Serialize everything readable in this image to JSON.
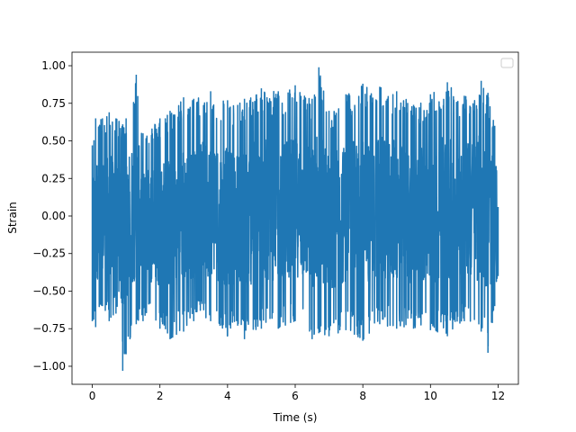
{
  "chart_data": {
    "type": "line",
    "title": "",
    "xlabel": "Time (s)",
    "ylabel": "Strain",
    "xlim": [
      -0.6,
      12.6
    ],
    "ylim": [
      -1.12,
      1.09
    ],
    "x_ticks": [
      0,
      2,
      4,
      6,
      8,
      10,
      12
    ],
    "x_tick_labels": [
      "0",
      "2",
      "4",
      "6",
      "8",
      "10",
      "12"
    ],
    "y_ticks": [
      -1.0,
      -0.75,
      -0.5,
      -0.25,
      0.0,
      0.25,
      0.5,
      0.75,
      1.0
    ],
    "y_tick_labels": [
      "−1.00",
      "−0.75",
      "−0.50",
      "−0.25",
      "0.00",
      "0.25",
      "0.50",
      "0.75",
      "1.00"
    ],
    "grid": false,
    "legend": {
      "position": "top-right",
      "entries": []
    },
    "series": [
      {
        "color": "#1f77b4",
        "x_start": 0,
        "x_end": 12,
        "samples": 2400,
        "envelope": [
          {
            "x": 0.0,
            "min": -0.7,
            "max": 0.47
          },
          {
            "x": 0.1,
            "min": -0.74,
            "max": 0.65
          },
          {
            "x": 0.3,
            "min": -0.6,
            "max": 0.65
          },
          {
            "x": 0.5,
            "min": -0.7,
            "max": 0.69
          },
          {
            "x": 0.7,
            "min": -0.65,
            "max": 0.65
          },
          {
            "x": 0.9,
            "min": -1.03,
            "max": 0.61
          },
          {
            "x": 1.0,
            "min": -0.92,
            "max": 0.65
          },
          {
            "x": 1.3,
            "min": -0.72,
            "max": 0.94
          },
          {
            "x": 1.5,
            "min": -0.7,
            "max": 0.55
          },
          {
            "x": 2.0,
            "min": -0.75,
            "max": 0.65
          },
          {
            "x": 2.3,
            "min": -0.82,
            "max": 0.7
          },
          {
            "x": 2.7,
            "min": -0.77,
            "max": 0.79
          },
          {
            "x": 3.0,
            "min": -0.7,
            "max": 0.78
          },
          {
            "x": 3.5,
            "min": -0.7,
            "max": 0.83
          },
          {
            "x": 4.0,
            "min": -0.8,
            "max": 0.77
          },
          {
            "x": 4.3,
            "min": -0.73,
            "max": 0.74
          },
          {
            "x": 4.5,
            "min": -0.82,
            "max": 0.78
          },
          {
            "x": 5.0,
            "min": -0.75,
            "max": 0.85
          },
          {
            "x": 5.5,
            "min": -0.75,
            "max": 0.83
          },
          {
            "x": 6.0,
            "min": -0.7,
            "max": 0.87
          },
          {
            "x": 6.5,
            "min": -0.82,
            "max": 0.78
          },
          {
            "x": 6.7,
            "min": -0.78,
            "max": 0.99
          },
          {
            "x": 7.0,
            "min": -0.8,
            "max": 0.7
          },
          {
            "x": 7.5,
            "min": -0.76,
            "max": 0.81
          },
          {
            "x": 8.0,
            "min": -0.83,
            "max": 0.88
          },
          {
            "x": 8.5,
            "min": -0.72,
            "max": 0.86
          },
          {
            "x": 9.0,
            "min": -0.75,
            "max": 0.83
          },
          {
            "x": 9.5,
            "min": -0.75,
            "max": 0.74
          },
          {
            "x": 10.0,
            "min": -0.76,
            "max": 0.81
          },
          {
            "x": 10.5,
            "min": -0.8,
            "max": 0.89
          },
          {
            "x": 11.0,
            "min": -0.7,
            "max": 0.8
          },
          {
            "x": 11.5,
            "min": -0.77,
            "max": 0.9
          },
          {
            "x": 11.7,
            "min": -0.91,
            "max": 0.82
          },
          {
            "x": 11.9,
            "min": -0.6,
            "max": 0.6
          },
          {
            "x": 12.0,
            "min": -0.4,
            "max": 0.06
          }
        ]
      }
    ]
  }
}
